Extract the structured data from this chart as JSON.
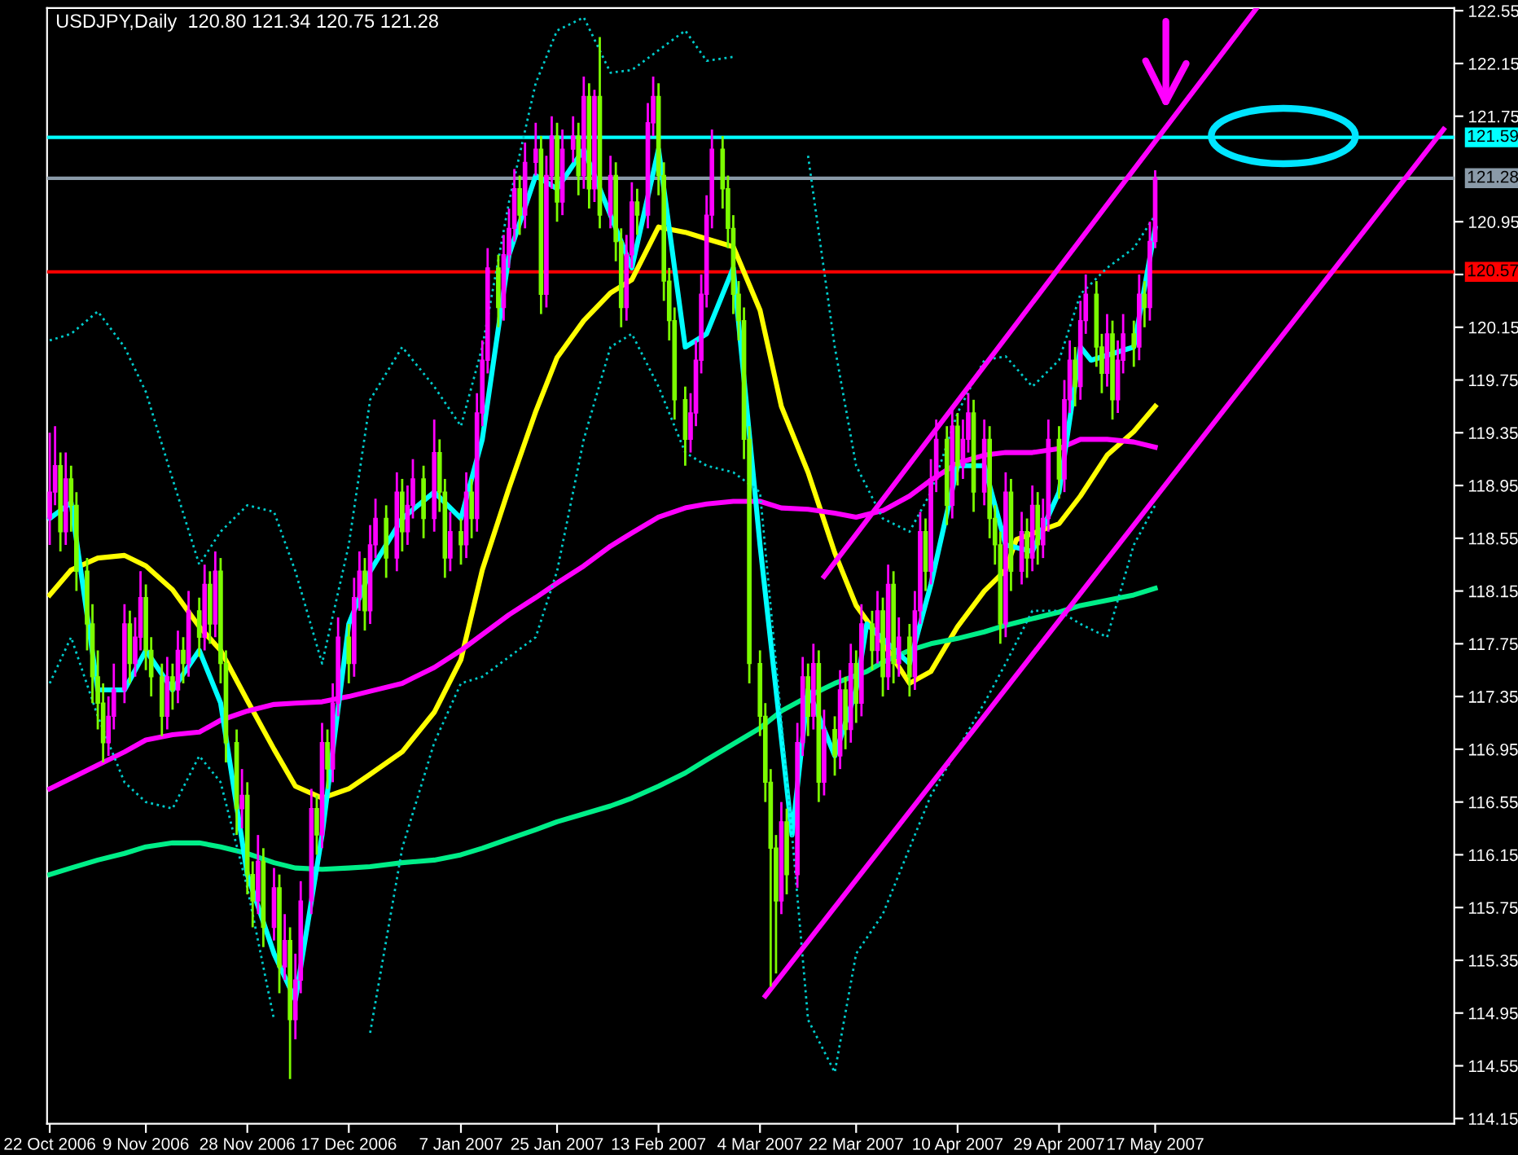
{
  "chart_data": {
    "type": "candlestick",
    "title": "USDJPY,Daily  120.80 121.34 120.75 121.28",
    "xlim": [
      "2006-10-21T12:00",
      "2007-07-12"
    ],
    "xticks": [
      {
        "value": "2006-10-22",
        "label": "22 Oct 2006"
      },
      {
        "value": "2006-11-09",
        "label": "9 Nov 2006"
      },
      {
        "value": "2006-11-28",
        "label": "28 Nov 2006"
      },
      {
        "value": "2006-12-17",
        "label": "17 Dec 2006"
      },
      {
        "value": "2007-01-07",
        "label": "7 Jan 2007"
      },
      {
        "value": "2007-01-25",
        "label": "25 Jan 2007"
      },
      {
        "value": "2007-02-13",
        "label": "13 Feb 2007"
      },
      {
        "value": "2007-03-04",
        "label": "4 Mar 2007"
      },
      {
        "value": "2007-03-22",
        "label": "22 Mar 2007"
      },
      {
        "value": "2007-04-10",
        "label": "10 Apr 2007"
      },
      {
        "value": "2007-04-29",
        "label": "29 Apr 2007"
      },
      {
        "value": "2007-05-17",
        "label": "17 May 2007"
      }
    ],
    "ylim": [
      114.11,
      122.57
    ],
    "yticks": [
      114.15,
      114.55,
      114.95,
      115.35,
      115.75,
      116.15,
      116.55,
      116.95,
      117.35,
      117.75,
      118.15,
      118.55,
      118.95,
      119.35,
      119.75,
      120.15,
      {
        "value": 120.55,
        "label": null
      },
      120.95,
      121.75,
      122.15,
      122.55
    ],
    "x": [
      "2006-10-22",
      "2006-10-23",
      "2006-10-24",
      "2006-10-25",
      "2006-10-26",
      "2006-10-27",
      "2006-10-29",
      "2006-10-30",
      "2006-10-31",
      "2006-11-01",
      "2006-11-02",
      "2006-11-03",
      "2006-11-05",
      "2006-11-06",
      "2006-11-07",
      "2006-11-08",
      "2006-11-09",
      "2006-11-10",
      "2006-11-12",
      "2006-11-13",
      "2006-11-14",
      "2006-11-15",
      "2006-11-16",
      "2006-11-17",
      "2006-11-19",
      "2006-11-20",
      "2006-11-21",
      "2006-11-22",
      "2006-11-23",
      "2006-11-24",
      "2006-11-26",
      "2006-11-27",
      "2006-11-28",
      "2006-11-29",
      "2006-11-30",
      "2006-12-01",
      "2006-12-03",
      "2006-12-04",
      "2006-12-05",
      "2006-12-06",
      "2006-12-07",
      "2006-12-08",
      "2006-12-10",
      "2006-12-11",
      "2006-12-12",
      "2006-12-13",
      "2006-12-14",
      "2006-12-15",
      "2006-12-17",
      "2006-12-18",
      "2006-12-19",
      "2006-12-20",
      "2006-12-21",
      "2006-12-22",
      "2006-12-24",
      "2006-12-26",
      "2006-12-27",
      "2006-12-28",
      "2006-12-29",
      "2006-12-31",
      "2007-01-02",
      "2007-01-03",
      "2007-01-04",
      "2007-01-05",
      "2007-01-07",
      "2007-01-08",
      "2007-01-09",
      "2007-01-10",
      "2007-01-11",
      "2007-01-12",
      "2007-01-14",
      "2007-01-15",
      "2007-01-16",
      "2007-01-17",
      "2007-01-18",
      "2007-01-19",
      "2007-01-21",
      "2007-01-22",
      "2007-01-23",
      "2007-01-24",
      "2007-01-25",
      "2007-01-26",
      "2007-01-28",
      "2007-01-29",
      "2007-01-30",
      "2007-01-31",
      "2007-02-01",
      "2007-02-02",
      "2007-02-04",
      "2007-02-05",
      "2007-02-06",
      "2007-02-07",
      "2007-02-08",
      "2007-02-09",
      "2007-02-11",
      "2007-02-12",
      "2007-02-13",
      "2007-02-14",
      "2007-02-15",
      "2007-02-16",
      "2007-02-18",
      "2007-02-19",
      "2007-02-20",
      "2007-02-21",
      "2007-02-22",
      "2007-02-23",
      "2007-02-25",
      "2007-02-26",
      "2007-02-27",
      "2007-02-28",
      "2007-03-01",
      "2007-03-02",
      "2007-03-04",
      "2007-03-05",
      "2007-03-06",
      "2007-03-07",
      "2007-03-08",
      "2007-03-09",
      "2007-03-11",
      "2007-03-12",
      "2007-03-13",
      "2007-03-14",
      "2007-03-15",
      "2007-03-16",
      "2007-03-18",
      "2007-03-19",
      "2007-03-20",
      "2007-03-21",
      "2007-03-22",
      "2007-03-23",
      "2007-03-25",
      "2007-03-26",
      "2007-03-27",
      "2007-03-28",
      "2007-03-29",
      "2007-03-30",
      "2007-04-01",
      "2007-04-02",
      "2007-04-03",
      "2007-04-04",
      "2007-04-05",
      "2007-04-06",
      "2007-04-08",
      "2007-04-09",
      "2007-04-10",
      "2007-04-11",
      "2007-04-12",
      "2007-04-13",
      "2007-04-15",
      "2007-04-16",
      "2007-04-17",
      "2007-04-18",
      "2007-04-19",
      "2007-04-20",
      "2007-04-22",
      "2007-04-23",
      "2007-04-24",
      "2007-04-25",
      "2007-04-26",
      "2007-04-27",
      "2007-04-29",
      "2007-04-30",
      "2007-05-01",
      "2007-05-02",
      "2007-05-03",
      "2007-05-04",
      "2007-05-06",
      "2007-05-07",
      "2007-05-08",
      "2007-05-09",
      "2007-05-10",
      "2007-05-11",
      "2007-05-13",
      "2007-05-14",
      "2007-05-15",
      "2007-05-16",
      "2007-05-17"
    ],
    "colors": [
      "#ff00ff",
      "#ff00ff",
      "#7cfc00",
      "#ff00ff",
      "#7cfc00",
      "#7cfc00",
      "#7cfc00",
      "#7cfc00",
      "#7cfc00",
      "#7cfc00",
      "#ff00ff",
      "#ff00ff",
      "#ff00ff",
      "#7cfc00",
      "#ff00ff",
      "#ff00ff",
      "#7cfc00",
      "#7cfc00",
      "#7cfc00",
      "#ff00ff",
      "#7cfc00",
      "#ff00ff",
      "#7cfc00",
      "#ff00ff",
      "#7cfc00",
      "#ff00ff",
      "#7cfc00",
      "#ff00ff",
      "#7cfc00",
      "#7cfc00",
      "#7cfc00",
      "#ff00ff",
      "#7cfc00",
      "#7cfc00",
      "#ff00ff",
      "#7cfc00",
      "#ff00ff",
      "#7cfc00",
      "#ff00ff",
      "#7cfc00",
      "#ff00ff",
      "#ff00ff",
      "#ff00ff",
      "#7cfc00",
      "#ff00ff",
      "#7cfc00",
      "#ff00ff",
      "#ff00ff",
      "#7cfc00",
      "#ff00ff",
      "#ff00ff",
      "#7cfc00",
      "#ff00ff",
      "#ff00ff",
      "#7cfc00",
      "#ff00ff",
      "#7cfc00",
      "#ff00ff",
      "#ff00ff",
      "#7cfc00",
      "#ff00ff",
      "#7cfc00",
      "#7cfc00",
      "#ff00ff",
      "#7cfc00",
      "#ff00ff",
      "#7cfc00",
      "#ff00ff",
      "#ff00ff",
      "#ff00ff",
      "#7cfc00",
      "#ff00ff",
      "#ff00ff",
      "#ff00ff",
      "#7cfc00",
      "#ff00ff",
      "#ff00ff",
      "#7cfc00",
      "#ff00ff",
      "#ff00ff",
      "#7cfc00",
      "#ff00ff",
      "#ff00ff",
      "#7cfc00",
      "#ff00ff",
      "#7cfc00",
      "#ff00ff",
      "#7cfc00",
      "#ff00ff",
      "#7cfc00",
      "#7cfc00",
      "#ff00ff",
      "#ff00ff",
      "#7cfc00",
      "#ff00ff",
      "#ff00ff",
      "#7cfc00",
      "#7cfc00",
      "#7cfc00",
      "#7cfc00",
      "#7cfc00",
      "#ff00ff",
      "#ff00ff",
      "#ff00ff",
      "#ff00ff",
      "#ff00ff",
      "#7cfc00",
      "#7cfc00",
      "#7cfc00",
      "#7cfc00",
      "#7cfc00",
      "#7cfc00",
      "#7cfc00",
      "#7cfc00",
      "#7cfc00",
      "#7cfc00",
      "#ff00ff",
      "#7cfc00",
      "#ff00ff",
      "#ff00ff",
      "#7cfc00",
      "#ff00ff",
      "#7cfc00",
      "#ff00ff",
      "#7cfc00",
      "#ff00ff",
      "#7cfc00",
      "#ff00ff",
      "#7cfc00",
      "#ff00ff",
      "#7cfc00",
      "#ff00ff",
      "#7cfc00",
      "#ff00ff",
      "#7cfc00",
      "#ff00ff",
      "#7cfc00",
      "#ff00ff",
      "#ff00ff",
      "#7cfc00",
      "#ff00ff",
      "#ff00ff",
      "#7cfc00",
      "#ff00ff",
      "#7cfc00",
      "#ff00ff",
      "#ff00ff",
      "#7cfc00",
      "#ff00ff",
      "#7cfc00",
      "#7cfc00",
      "#7cfc00",
      "#ff00ff",
      "#7cfc00",
      "#ff00ff",
      "#7cfc00",
      "#ff00ff",
      "#7cfc00",
      "#ff00ff",
      "#ff00ff",
      "#7cfc00",
      "#ff00ff",
      "#ff00ff",
      "#7cfc00",
      "#ff00ff",
      "#ff00ff",
      "#7cfc00",
      "#7cfc00",
      "#ff00ff",
      "#7cfc00",
      "#ff00ff",
      "#ff00ff",
      "#7cfc00",
      "#ff00ff",
      "#7cfc00",
      "#ff00ff",
      "#ff00ff"
    ],
    "ohlc": [
      [
        118.7,
        119.35,
        118.5,
        118.9
      ],
      [
        118.9,
        119.4,
        118.8,
        119.1
      ],
      [
        119.1,
        119.2,
        118.45,
        118.6
      ],
      [
        118.6,
        119.2,
        118.5,
        119.0
      ],
      [
        119.0,
        119.1,
        118.6,
        118.8
      ],
      [
        118.8,
        118.9,
        118.15,
        118.3
      ],
      [
        118.3,
        118.4,
        117.7,
        117.9
      ],
      [
        117.9,
        118.05,
        117.3,
        117.5
      ],
      [
        117.5,
        117.7,
        117.1,
        117.3
      ],
      [
        117.3,
        117.45,
        116.85,
        117.0
      ],
      [
        117.0,
        117.35,
        116.9,
        117.2
      ],
      [
        117.2,
        117.6,
        117.1,
        117.4
      ],
      [
        117.4,
        118.05,
        117.3,
        117.9
      ],
      [
        117.9,
        118.0,
        117.45,
        117.6
      ],
      [
        117.6,
        117.95,
        117.5,
        117.8
      ],
      [
        117.8,
        118.3,
        117.7,
        118.1
      ],
      [
        118.1,
        118.2,
        117.55,
        117.7
      ],
      [
        117.7,
        117.8,
        117.35,
        117.5
      ],
      [
        117.5,
        117.6,
        117.05,
        117.2
      ],
      [
        117.2,
        117.65,
        117.1,
        117.5
      ],
      [
        117.5,
        117.6,
        117.25,
        117.4
      ],
      [
        117.4,
        117.85,
        117.3,
        117.7
      ],
      [
        117.7,
        117.8,
        117.45,
        117.6
      ],
      [
        117.6,
        118.15,
        117.5,
        118.0
      ],
      [
        118.0,
        118.1,
        117.65,
        117.8
      ],
      [
        117.8,
        118.35,
        117.7,
        118.2
      ],
      [
        118.2,
        118.3,
        117.75,
        117.9
      ],
      [
        117.9,
        118.45,
        117.8,
        118.3
      ],
      [
        118.3,
        118.4,
        117.45,
        117.6
      ],
      [
        117.6,
        117.7,
        116.85,
        117.0
      ],
      [
        117.0,
        117.1,
        116.3,
        116.5
      ],
      [
        116.5,
        116.8,
        116.35,
        116.6
      ],
      [
        116.6,
        116.7,
        115.85,
        116.0
      ],
      [
        116.0,
        116.1,
        115.6,
        115.8
      ],
      [
        115.8,
        116.3,
        115.7,
        116.1
      ],
      [
        116.1,
        116.2,
        115.45,
        115.6
      ],
      [
        115.6,
        116.05,
        115.5,
        115.9
      ],
      [
        115.9,
        116.0,
        115.1,
        115.3
      ],
      [
        115.3,
        115.7,
        115.2,
        115.5
      ],
      [
        115.5,
        115.6,
        114.45,
        114.9
      ],
      [
        114.9,
        115.4,
        114.75,
        115.2
      ],
      [
        115.2,
        115.95,
        115.1,
        115.8
      ],
      [
        115.8,
        116.65,
        115.7,
        116.5
      ],
      [
        116.5,
        116.6,
        116.15,
        116.3
      ],
      [
        116.3,
        117.15,
        116.2,
        117.0
      ],
      [
        117.0,
        117.1,
        116.65,
        116.8
      ],
      [
        116.8,
        117.45,
        116.7,
        117.3
      ],
      [
        117.3,
        117.95,
        117.2,
        117.8
      ],
      [
        117.8,
        117.9,
        117.45,
        117.6
      ],
      [
        117.6,
        118.25,
        117.5,
        118.1
      ],
      [
        118.1,
        118.45,
        118.0,
        118.3
      ],
      [
        118.3,
        118.4,
        117.85,
        118.0
      ],
      [
        118.0,
        118.65,
        117.9,
        118.5
      ],
      [
        118.5,
        118.85,
        118.4,
        118.7
      ],
      [
        118.7,
        118.8,
        118.25,
        118.4
      ],
      [
        118.4,
        119.05,
        118.3,
        118.9
      ],
      [
        118.9,
        119.0,
        118.45,
        118.6
      ],
      [
        118.6,
        118.95,
        118.5,
        118.8
      ],
      [
        118.8,
        119.15,
        118.7,
        119.0
      ],
      [
        119.0,
        119.1,
        118.55,
        118.7
      ],
      [
        118.7,
        119.45,
        118.6,
        119.2
      ],
      [
        119.2,
        119.3,
        118.75,
        118.9
      ],
      [
        118.9,
        119.0,
        118.25,
        118.4
      ],
      [
        118.4,
        118.75,
        118.3,
        118.6
      ],
      [
        118.6,
        118.7,
        118.35,
        118.5
      ],
      [
        118.5,
        119.05,
        118.4,
        118.9
      ],
      [
        118.9,
        119.0,
        118.55,
        118.7
      ],
      [
        118.7,
        119.65,
        118.6,
        119.5
      ],
      [
        119.5,
        120.05,
        119.4,
        119.9
      ],
      [
        119.9,
        120.75,
        119.8,
        120.6
      ],
      [
        120.6,
        120.7,
        120.15,
        120.3
      ],
      [
        120.3,
        120.85,
        120.2,
        120.7
      ],
      [
        120.7,
        121.05,
        120.6,
        120.9
      ],
      [
        120.9,
        121.35,
        120.8,
        121.2
      ],
      [
        121.2,
        121.3,
        120.85,
        121.0
      ],
      [
        121.0,
        121.55,
        120.9,
        121.4
      ],
      [
        121.4,
        121.7,
        121.3,
        121.5
      ],
      [
        121.5,
        121.6,
        120.25,
        120.4
      ],
      [
        120.4,
        121.45,
        120.3,
        121.3
      ],
      [
        121.3,
        121.75,
        121.2,
        121.6
      ],
      [
        121.6,
        121.7,
        120.95,
        121.1
      ],
      [
        121.1,
        121.65,
        121.0,
        121.5
      ],
      [
        121.5,
        121.75,
        121.4,
        121.6
      ],
      [
        121.6,
        121.7,
        121.15,
        121.3
      ],
      [
        121.3,
        122.05,
        121.2,
        121.9
      ],
      [
        121.9,
        122.0,
        121.05,
        121.2
      ],
      [
        121.2,
        121.95,
        121.1,
        121.9
      ],
      [
        121.9,
        122.35,
        120.9,
        121.0
      ],
      [
        121.0,
        121.45,
        120.9,
        121.3
      ],
      [
        121.3,
        121.4,
        120.65,
        120.8
      ],
      [
        120.8,
        120.9,
        120.15,
        120.3
      ],
      [
        120.3,
        120.85,
        120.2,
        120.7
      ],
      [
        120.7,
        121.25,
        120.6,
        121.1
      ],
      [
        121.1,
        121.2,
        120.85,
        121.0
      ],
      [
        121.0,
        121.85,
        120.9,
        121.7
      ],
      [
        121.7,
        122.05,
        121.6,
        121.9
      ],
      [
        121.9,
        122.0,
        121.15,
        121.3
      ],
      [
        121.3,
        121.4,
        120.35,
        120.5
      ],
      [
        120.5,
        120.6,
        120.05,
        120.2
      ],
      [
        120.2,
        120.3,
        119.45,
        119.6
      ],
      [
        119.6,
        119.7,
        119.1,
        119.3
      ],
      [
        119.3,
        119.65,
        119.2,
        119.5
      ],
      [
        119.5,
        120.05,
        119.4,
        119.9
      ],
      [
        119.9,
        120.55,
        119.8,
        120.4
      ],
      [
        120.4,
        121.15,
        120.3,
        121.0
      ],
      [
        121.0,
        121.65,
        120.9,
        121.5
      ],
      [
        121.5,
        121.6,
        121.05,
        121.2
      ],
      [
        121.2,
        121.3,
        120.75,
        120.9
      ],
      [
        120.9,
        121.0,
        120.25,
        120.4
      ],
      [
        120.4,
        120.5,
        120.05,
        120.2
      ],
      [
        120.2,
        120.3,
        119.15,
        119.3
      ],
      [
        119.3,
        119.4,
        117.45,
        117.6
      ],
      [
        117.6,
        117.7,
        117.05,
        117.2
      ],
      [
        117.2,
        117.3,
        116.55,
        116.7
      ],
      [
        116.7,
        116.8,
        115.15,
        116.2
      ],
      [
        116.2,
        116.3,
        115.25,
        115.8
      ],
      [
        115.8,
        116.55,
        115.7,
        116.4
      ],
      [
        116.4,
        116.5,
        115.85,
        116.0
      ],
      [
        116.0,
        117.15,
        115.9,
        117.0
      ],
      [
        117.0,
        117.65,
        116.9,
        117.5
      ],
      [
        117.5,
        117.6,
        117.05,
        117.2
      ],
      [
        117.2,
        117.75,
        117.1,
        117.6
      ],
      [
        117.6,
        117.7,
        116.55,
        116.7
      ],
      [
        116.7,
        117.25,
        116.6,
        117.1
      ],
      [
        117.1,
        117.2,
        116.75,
        116.9
      ],
      [
        116.9,
        117.55,
        116.8,
        117.4
      ],
      [
        117.4,
        117.5,
        116.95,
        117.1
      ],
      [
        117.1,
        117.75,
        117.0,
        117.6
      ],
      [
        117.6,
        117.7,
        117.15,
        117.3
      ],
      [
        117.3,
        118.05,
        117.2,
        117.9
      ],
      [
        117.9,
        118.0,
        117.55,
        117.7
      ],
      [
        117.7,
        118.15,
        117.6,
        118.0
      ],
      [
        118.0,
        118.1,
        117.35,
        117.5
      ],
      [
        117.5,
        118.35,
        117.4,
        118.2
      ],
      [
        118.2,
        118.3,
        117.45,
        117.6
      ],
      [
        117.6,
        117.95,
        117.5,
        117.8
      ],
      [
        117.8,
        117.9,
        117.35,
        117.5
      ],
      [
        117.5,
        118.15,
        117.4,
        118.0
      ],
      [
        118.0,
        118.75,
        117.9,
        118.6
      ],
      [
        118.6,
        118.7,
        118.15,
        118.3
      ],
      [
        118.3,
        119.15,
        118.2,
        119.0
      ],
      [
        119.0,
        119.45,
        118.9,
        119.3
      ],
      [
        119.3,
        119.4,
        118.65,
        118.8
      ],
      [
        118.8,
        119.55,
        118.7,
        119.4
      ],
      [
        119.4,
        119.5,
        118.95,
        119.1
      ],
      [
        119.1,
        119.45,
        119.0,
        119.3
      ],
      [
        119.3,
        119.65,
        119.2,
        119.5
      ],
      [
        119.5,
        119.6,
        118.75,
        118.9
      ],
      [
        118.9,
        119.45,
        118.8,
        119.3
      ],
      [
        119.3,
        119.4,
        118.55,
        118.7
      ],
      [
        118.7,
        118.8,
        118.35,
        118.5
      ],
      [
        118.5,
        118.6,
        117.75,
        117.9
      ],
      [
        117.9,
        119.05,
        117.8,
        118.9
      ],
      [
        118.9,
        119.0,
        118.15,
        118.3
      ],
      [
        118.3,
        118.75,
        118.2,
        118.6
      ],
      [
        118.6,
        118.7,
        118.25,
        118.4
      ],
      [
        118.4,
        118.95,
        118.3,
        118.8
      ],
      [
        118.8,
        118.9,
        118.35,
        118.5
      ],
      [
        118.5,
        118.85,
        118.4,
        118.7
      ],
      [
        118.7,
        119.45,
        118.6,
        119.3
      ],
      [
        119.3,
        119.4,
        118.85,
        119.0
      ],
      [
        119.0,
        119.75,
        118.9,
        119.6
      ],
      [
        119.6,
        120.05,
        119.5,
        119.9
      ],
      [
        119.9,
        120.0,
        119.55,
        119.7
      ],
      [
        119.7,
        120.35,
        119.6,
        120.2
      ],
      [
        120.2,
        120.55,
        120.1,
        120.4
      ],
      [
        120.4,
        120.5,
        119.85,
        120.0
      ],
      [
        120.0,
        120.1,
        119.65,
        119.8
      ],
      [
        119.8,
        120.25,
        119.7,
        120.1
      ],
      [
        120.1,
        120.2,
        119.45,
        119.6
      ],
      [
        119.6,
        120.05,
        119.5,
        119.9
      ],
      [
        119.9,
        120.25,
        119.8,
        120.1
      ],
      [
        120.1,
        120.2,
        119.85,
        120.0
      ],
      [
        120.0,
        120.55,
        119.9,
        120.4
      ],
      [
        120.4,
        120.5,
        120.15,
        120.3
      ],
      [
        120.3,
        120.95,
        120.2,
        120.8
      ],
      [
        120.8,
        121.34,
        120.75,
        121.28
      ]
    ],
    "series": [
      {
        "type": "line",
        "color": "#ffff00",
        "line_style": "solid",
        "x": [
          "2006-10-22",
          "2006-10-26",
          "2006-10-31",
          "2006-11-05",
          "2006-11-09",
          "2006-11-14",
          "2006-11-19",
          "2006-11-23",
          "2006-11-28",
          "2006-12-03",
          "2006-12-07",
          "2006-12-12",
          "2006-12-17",
          "2006-12-21",
          "2006-12-27",
          "2007-01-02",
          "2007-01-07",
          "2007-01-11",
          "2007-01-16",
          "2007-01-21",
          "2007-01-25",
          "2007-01-30",
          "2007-02-04",
          "2007-02-08",
          "2007-02-13",
          "2007-02-18",
          "2007-02-22",
          "2007-02-27",
          "2007-03-04",
          "2007-03-08",
          "2007-03-13",
          "2007-03-18",
          "2007-03-22",
          "2007-03-27",
          "2007-04-01",
          "2007-04-05",
          "2007-04-10",
          "2007-04-15",
          "2007-04-19",
          "2007-04-21",
          "2007-04-29",
          "2007-05-03",
          "2007-05-08",
          "2007-05-13",
          "2007-05-17"
        ],
        "values": [
          118.12,
          118.31,
          118.4,
          118.42,
          118.34,
          118.16,
          117.88,
          117.7,
          117.32,
          116.95,
          116.67,
          116.58,
          116.65,
          116.76,
          116.93,
          117.23,
          117.63,
          118.31,
          118.93,
          119.51,
          119.92,
          120.2,
          120.41,
          120.51,
          120.91,
          120.87,
          120.82,
          120.76,
          120.28,
          119.55,
          119.05,
          118.44,
          118.04,
          117.76,
          117.45,
          117.54,
          117.88,
          118.15,
          118.31,
          118.54,
          118.66,
          118.87,
          119.18,
          119.36,
          119.55
        ]
      },
      {
        "type": "line",
        "color": "#ff00ff",
        "line_style": "solid",
        "x": [
          "2006-10-22",
          "2006-10-26",
          "2006-10-31",
          "2006-11-05",
          "2006-11-09",
          "2006-11-14",
          "2006-11-19",
          "2006-11-23",
          "2006-11-28",
          "2006-12-03",
          "2006-12-07",
          "2006-12-12",
          "2006-12-17",
          "2006-12-21",
          "2006-12-27",
          "2007-01-02",
          "2007-01-07",
          "2007-01-11",
          "2007-01-16",
          "2007-01-21",
          "2007-01-25",
          "2007-01-30",
          "2007-02-04",
          "2007-02-08",
          "2007-02-13",
          "2007-02-18",
          "2007-02-22",
          "2007-02-27",
          "2007-03-04",
          "2007-03-08",
          "2007-03-13",
          "2007-03-18",
          "2007-03-22",
          "2007-03-27",
          "2007-04-01",
          "2007-04-05",
          "2007-04-10",
          "2007-04-15",
          "2007-04-19",
          "2007-04-24",
          "2007-04-29",
          "2007-05-03",
          "2007-05-08",
          "2007-05-13",
          "2007-05-17"
        ],
        "values": [
          116.65,
          116.73,
          116.83,
          116.93,
          117.02,
          117.06,
          117.08,
          117.17,
          117.24,
          117.29,
          117.3,
          117.31,
          117.35,
          117.39,
          117.45,
          117.57,
          117.7,
          117.82,
          117.97,
          118.1,
          118.21,
          118.34,
          118.49,
          118.59,
          118.71,
          118.78,
          118.81,
          118.83,
          118.83,
          118.78,
          118.77,
          118.74,
          118.71,
          118.76,
          118.87,
          118.99,
          119.12,
          119.18,
          119.2,
          119.2,
          119.23,
          119.3,
          119.3,
          119.28,
          119.24
        ]
      },
      {
        "type": "line",
        "color": "#00ee88",
        "line_style": "solid",
        "x": [
          "2006-10-22",
          "2006-10-26",
          "2006-10-31",
          "2006-11-05",
          "2006-11-09",
          "2006-11-14",
          "2006-11-19",
          "2006-11-23",
          "2006-11-28",
          "2006-12-03",
          "2006-12-07",
          "2006-12-12",
          "2006-12-17",
          "2006-12-21",
          "2006-12-27",
          "2007-01-02",
          "2007-01-07",
          "2007-01-11",
          "2007-01-16",
          "2007-01-21",
          "2007-01-25",
          "2007-01-30",
          "2007-02-04",
          "2007-02-08",
          "2007-02-13",
          "2007-02-18",
          "2007-02-22",
          "2007-02-27",
          "2007-03-04",
          "2007-03-08",
          "2007-03-13",
          "2007-03-18",
          "2007-03-24",
          "2007-03-27",
          "2007-04-01",
          "2007-04-05",
          "2007-04-10",
          "2007-04-15",
          "2007-04-19",
          "2007-04-24",
          "2007-04-29",
          "2007-05-03",
          "2007-05-08",
          "2007-05-13",
          "2007-05-17"
        ],
        "values": [
          116.0,
          116.05,
          116.11,
          116.16,
          116.21,
          116.24,
          116.24,
          116.21,
          116.16,
          116.09,
          116.05,
          116.04,
          116.05,
          116.06,
          116.09,
          116.11,
          116.15,
          116.2,
          116.27,
          116.34,
          116.4,
          116.46,
          116.52,
          116.58,
          116.67,
          116.77,
          116.87,
          116.99,
          117.11,
          117.24,
          117.35,
          117.45,
          117.54,
          117.61,
          117.7,
          117.75,
          117.79,
          117.84,
          117.89,
          117.94,
          117.99,
          118.04,
          118.08,
          118.12,
          118.17
        ]
      },
      {
        "type": "line",
        "color": "#00ffff",
        "line_style": "solid",
        "x": [
          "2006-10-22",
          "2006-10-26",
          "2006-10-31",
          "2006-11-05",
          "2006-11-09",
          "2006-11-14",
          "2006-11-19",
          "2006-11-23",
          "2006-11-28",
          "2006-12-03",
          "2006-12-07",
          "2006-12-12",
          "2006-12-17",
          "2006-12-21",
          "2006-12-27",
          "2007-01-02",
          "2007-01-07",
          "2007-01-11",
          "2007-01-16",
          "2007-01-21",
          "2007-01-25",
          "2007-01-30",
          "2007-02-04",
          "2007-02-08",
          "2007-02-13",
          "2007-02-18",
          "2007-02-22",
          "2007-02-27",
          "2007-03-04",
          "2007-03-10",
          "2007-03-13",
          "2007-03-18",
          "2007-03-22",
          "2007-03-24",
          "2007-04-01",
          "2007-04-05",
          "2007-04-10",
          "2007-04-15",
          "2007-04-19",
          "2007-04-24",
          "2007-04-29",
          "2007-05-03",
          "2007-05-05",
          "2007-05-13",
          "2007-05-17"
        ],
        "values": [
          118.7,
          118.82,
          117.4,
          117.4,
          117.7,
          117.4,
          117.7,
          117.3,
          116.0,
          115.4,
          115.05,
          116.3,
          117.9,
          118.3,
          118.7,
          118.9,
          118.7,
          119.3,
          120.7,
          121.3,
          121.2,
          121.5,
          121.0,
          120.6,
          121.5,
          120.0,
          120.1,
          120.6,
          118.5,
          116.3,
          117.4,
          116.9,
          117.4,
          117.9,
          117.6,
          118.2,
          119.1,
          119.1,
          118.5,
          118.45,
          118.9,
          120.0,
          119.9,
          120.0,
          120.9
        ]
      },
      {
        "type": "line",
        "color": "#00cccc",
        "line_style": "dotted",
        "x": [
          "2006-10-22",
          "2006-10-26",
          "2006-10-31",
          "2006-11-05",
          "2006-11-09",
          "2006-11-14",
          "2006-11-19",
          "2006-11-23",
          "2006-11-28",
          "2006-12-03",
          "2006-12-07",
          "2006-12-12",
          "2006-12-17",
          "2006-12-21",
          "2006-12-27",
          "2007-01-02",
          "2007-01-07",
          "2007-01-11",
          "2007-01-16",
          "2007-01-21",
          "2007-01-25",
          "2007-01-30",
          "2007-02-04",
          "2007-02-08",
          "2007-02-13",
          "2007-02-18",
          "2007-02-22",
          "2007-02-27",
          "2007-03-04",
          "2007-03-08",
          "2007-03-13",
          "2007-03-18",
          "2007-03-22",
          "2007-03-27",
          "2007-04-01",
          "2007-04-05",
          "2007-04-10",
          "2007-04-15",
          "2007-04-19",
          "2007-04-24",
          "2007-04-29",
          "2007-05-03",
          "2007-05-08",
          "2007-05-13",
          "2007-05-17"
        ],
        "values": [
          120.05,
          120.1,
          120.27,
          120.0,
          119.66,
          119.0,
          118.35,
          118.6,
          118.8,
          118.75,
          118.3,
          117.6,
          118.5,
          119.6,
          120.0,
          119.7,
          119.4,
          120.0,
          121.1,
          122.0,
          122.4,
          122.5,
          122.08,
          122.1,
          122.25,
          122.4,
          122.17,
          122.2,
          null,
          null,
          121.45,
          120.0,
          119.1,
          118.7,
          118.6,
          118.9,
          119.5,
          119.9,
          119.93,
          119.7,
          119.9,
          120.4,
          120.6,
          120.75,
          121.0
        ]
      },
      {
        "type": "line",
        "color": "#00cccc",
        "line_style": "dotted",
        "x": [
          "2006-10-22",
          "2006-10-26",
          "2006-10-31",
          "2006-11-05",
          "2006-11-09",
          "2006-11-14",
          "2006-11-19",
          "2006-11-23",
          "2006-11-28",
          "2006-12-03",
          "2006-12-07",
          "2006-12-12",
          "2006-12-17",
          "2006-12-21",
          "2006-12-27",
          "2007-01-02",
          "2007-01-07",
          "2007-01-11",
          "2007-01-16",
          "2007-01-21",
          "2007-01-25",
          "2007-01-30",
          "2007-02-04",
          "2007-02-08",
          "2007-02-13",
          "2007-02-18",
          "2007-02-22",
          "2007-02-27",
          "2007-03-04",
          "2007-03-10",
          "2007-03-13",
          "2007-03-18",
          "2007-03-22",
          "2007-03-27",
          "2007-04-01",
          "2007-04-05",
          "2007-04-10",
          "2007-04-15",
          "2007-04-19",
          "2007-04-24",
          "2007-04-29",
          "2007-05-03",
          "2007-05-08",
          "2007-05-13",
          "2007-05-17"
        ],
        "values": [
          117.45,
          117.8,
          117.2,
          116.7,
          116.55,
          116.5,
          116.9,
          116.7,
          115.9,
          114.9,
          null,
          null,
          null,
          114.8,
          116.2,
          117.0,
          117.45,
          117.5,
          117.65,
          117.8,
          118.3,
          119.3,
          120.0,
          120.1,
          119.7,
          119.2,
          119.1,
          119.05,
          118.9,
          116.3,
          114.9,
          114.5,
          115.4,
          115.7,
          116.2,
          116.6,
          116.95,
          117.3,
          117.6,
          118.0,
          118.0,
          117.9,
          117.8,
          118.5,
          118.8
        ]
      },
      {
        "type": "line",
        "color": "#ff00ff",
        "line_style": "solid",
        "x": [
          "2007-03-16",
          "2007-06-05"
        ],
        "values": [
          118.26,
          122.57
        ]
      },
      {
        "type": "line",
        "color": "#ff00ff",
        "line_style": "solid",
        "x": [
          "2007-03-05",
          "2007-07-10"
        ],
        "values": [
          115.08,
          121.65
        ]
      }
    ],
    "ref_lines": [
      {
        "axis": "y",
        "value": 121.59,
        "label": "121.59",
        "color": "#00ffff"
      },
      {
        "axis": "y",
        "value": 121.28,
        "label": "121.28",
        "color": "#8a9aa8"
      },
      {
        "axis": "y",
        "value": 120.57,
        "label": "120.57",
        "color": "#ff0000"
      }
    ]
  }
}
